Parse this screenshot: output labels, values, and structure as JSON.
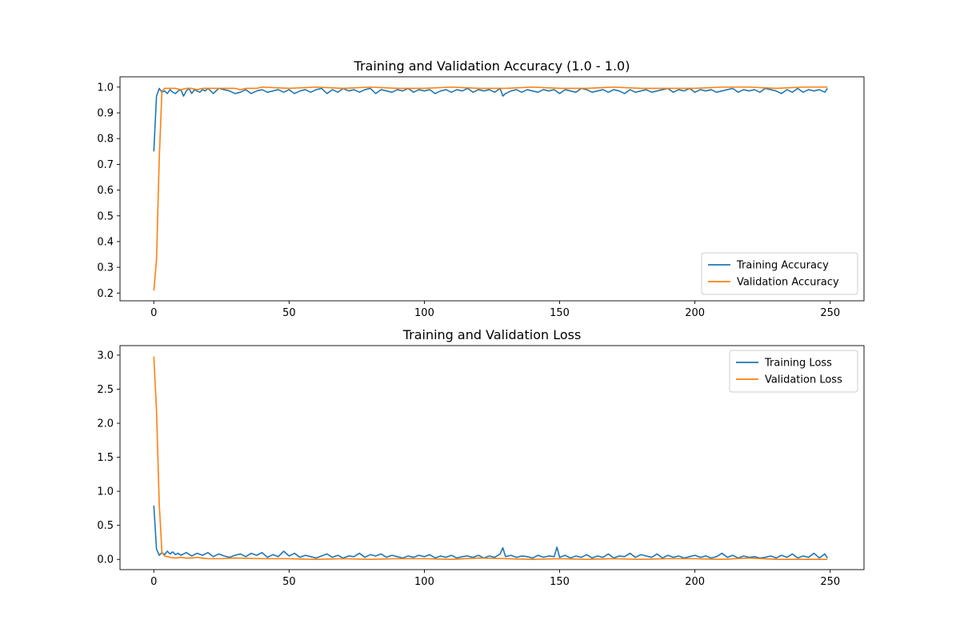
{
  "colors": {
    "training": "#1f77b4",
    "validation": "#ff7f0e"
  },
  "chart_data": [
    {
      "type": "line",
      "title": "Training and Validation Accuracy (1.0 - 1.0)",
      "xlabel": "",
      "ylabel": "",
      "xlim": [
        -12.5,
        262.5
      ],
      "ylim": [
        0.17,
        1.04
      ],
      "xticks": [
        0,
        50,
        100,
        150,
        200,
        250
      ],
      "xtick_labels": [
        "0",
        "50",
        "100",
        "150",
        "200",
        "250"
      ],
      "yticks": [
        0.2,
        0.3,
        0.4,
        0.5,
        0.6,
        0.7,
        0.8,
        0.9,
        1.0
      ],
      "ytick_labels": [
        "0.2",
        "0.3",
        "0.4",
        "0.5",
        "0.6",
        "0.7",
        "0.8",
        "0.9",
        "1.0"
      ],
      "grid": false,
      "legend_position": "lower-right",
      "series": [
        {
          "name": "Training Accuracy",
          "color": "#1f77b4",
          "x": [
            0,
            1,
            2,
            3,
            4,
            5,
            6,
            7,
            8,
            9,
            10,
            11,
            12,
            13,
            14,
            15,
            16,
            17,
            18,
            19,
            20,
            22,
            24,
            26,
            28,
            30,
            32,
            34,
            36,
            38,
            40,
            42,
            44,
            46,
            48,
            50,
            52,
            54,
            56,
            58,
            60,
            62,
            64,
            66,
            68,
            70,
            72,
            74,
            76,
            78,
            80,
            82,
            84,
            86,
            88,
            90,
            92,
            94,
            96,
            98,
            100,
            102,
            104,
            106,
            108,
            110,
            112,
            114,
            116,
            118,
            120,
            122,
            124,
            126,
            128,
            129,
            130,
            132,
            134,
            136,
            138,
            140,
            142,
            144,
            146,
            148,
            150,
            152,
            154,
            156,
            158,
            160,
            162,
            164,
            166,
            168,
            170,
            172,
            174,
            176,
            178,
            180,
            182,
            184,
            186,
            188,
            190,
            192,
            194,
            196,
            198,
            200,
            202,
            204,
            206,
            208,
            210,
            212,
            214,
            216,
            218,
            220,
            222,
            224,
            226,
            228,
            230,
            232,
            234,
            236,
            238,
            240,
            242,
            244,
            246,
            248,
            249
          ],
          "y": [
            0.75,
            0.965,
            0.995,
            0.98,
            0.985,
            0.975,
            0.99,
            0.98,
            0.975,
            0.985,
            0.99,
            0.965,
            0.985,
            0.995,
            0.975,
            0.99,
            0.985,
            0.98,
            0.99,
            0.985,
            0.995,
            0.975,
            0.995,
            0.99,
            0.985,
            0.975,
            0.98,
            0.99,
            0.975,
            0.985,
            0.99,
            0.98,
            0.985,
            0.99,
            0.98,
            0.99,
            0.975,
            0.985,
            0.99,
            0.98,
            0.99,
            0.995,
            0.975,
            0.99,
            0.98,
            0.995,
            0.985,
            0.99,
            0.98,
            0.99,
            0.995,
            0.975,
            0.99,
            0.985,
            0.98,
            0.99,
            0.985,
            0.995,
            0.98,
            0.99,
            0.985,
            0.99,
            0.975,
            0.985,
            0.99,
            0.98,
            0.99,
            0.985,
            0.995,
            0.98,
            0.99,
            0.985,
            0.99,
            0.98,
            0.995,
            0.965,
            0.975,
            0.985,
            0.99,
            0.98,
            0.99,
            0.985,
            0.98,
            0.99,
            0.985,
            0.99,
            0.975,
            0.99,
            0.985,
            0.98,
            0.995,
            0.99,
            0.98,
            0.985,
            0.99,
            0.98,
            0.99,
            0.985,
            0.975,
            0.99,
            0.98,
            0.985,
            0.99,
            0.98,
            0.985,
            0.99,
            0.995,
            0.98,
            0.99,
            0.985,
            0.995,
            0.98,
            0.99,
            0.985,
            0.99,
            0.98,
            0.985,
            0.99,
            0.995,
            0.98,
            0.99,
            0.985,
            0.99,
            0.98,
            0.995,
            0.99,
            0.985,
            0.975,
            0.99,
            0.98,
            0.995,
            0.98,
            0.99,
            0.985,
            0.99,
            0.98,
            0.995
          ]
        },
        {
          "name": "Validation Accuracy",
          "color": "#ff7f0e",
          "x": [
            0,
            1,
            2,
            3,
            4,
            5,
            6,
            8,
            10,
            12,
            14,
            16,
            18,
            20,
            22,
            24,
            26,
            28,
            30,
            32,
            34,
            36,
            38,
            40,
            50,
            60,
            70,
            80,
            90,
            100,
            110,
            120,
            130,
            140,
            150,
            160,
            170,
            180,
            190,
            200,
            210,
            220,
            230,
            240,
            249
          ],
          "y": [
            0.21,
            0.33,
            0.72,
            0.985,
            0.995,
            0.995,
            0.995,
            0.995,
            0.99,
            0.995,
            0.995,
            0.99,
            0.995,
            0.995,
            0.995,
            0.995,
            0.995,
            0.995,
            0.995,
            0.99,
            0.995,
            0.995,
            0.995,
            1.0,
            0.995,
            1.0,
            0.995,
            1.0,
            0.995,
            0.995,
            1.0,
            0.995,
            0.995,
            1.0,
            0.995,
            0.995,
            1.0,
            0.995,
            0.995,
            0.995,
            1.0,
            1.0,
            0.995,
            1.0,
            1.0
          ]
        }
      ]
    },
    {
      "type": "line",
      "title": "Training and Validation Loss",
      "xlabel": "",
      "ylabel": "",
      "xlim": [
        -12.5,
        262.5
      ],
      "ylim": [
        -0.15,
        3.14
      ],
      "xticks": [
        0,
        50,
        100,
        150,
        200,
        250
      ],
      "xtick_labels": [
        "0",
        "50",
        "100",
        "150",
        "200",
        "250"
      ],
      "yticks": [
        0.0,
        0.5,
        1.0,
        1.5,
        2.0,
        2.5,
        3.0
      ],
      "ytick_labels": [
        "0.0",
        "0.5",
        "1.0",
        "1.5",
        "2.0",
        "2.5",
        "3.0"
      ],
      "grid": false,
      "legend_position": "top-right",
      "series": [
        {
          "name": "Training Loss",
          "color": "#1f77b4",
          "x": [
            0,
            1,
            2,
            3,
            4,
            5,
            6,
            7,
            8,
            9,
            10,
            12,
            14,
            16,
            18,
            20,
            22,
            24,
            26,
            28,
            30,
            32,
            34,
            36,
            38,
            40,
            42,
            44,
            46,
            48,
            50,
            52,
            54,
            56,
            58,
            60,
            62,
            64,
            66,
            68,
            70,
            72,
            74,
            76,
            78,
            80,
            82,
            84,
            86,
            88,
            90,
            92,
            94,
            96,
            98,
            100,
            102,
            104,
            106,
            108,
            110,
            112,
            114,
            116,
            118,
            120,
            122,
            124,
            126,
            128,
            129,
            130,
            132,
            134,
            136,
            138,
            140,
            142,
            144,
            146,
            148,
            149,
            150,
            152,
            154,
            156,
            158,
            160,
            162,
            164,
            166,
            168,
            170,
            172,
            174,
            176,
            178,
            180,
            182,
            184,
            186,
            188,
            190,
            192,
            194,
            196,
            198,
            200,
            202,
            204,
            206,
            208,
            210,
            212,
            214,
            216,
            218,
            220,
            222,
            224,
            226,
            228,
            230,
            232,
            234,
            236,
            238,
            240,
            242,
            244,
            246,
            248,
            249
          ],
          "y": [
            0.79,
            0.15,
            0.06,
            0.1,
            0.07,
            0.12,
            0.08,
            0.11,
            0.07,
            0.09,
            0.06,
            0.1,
            0.05,
            0.09,
            0.06,
            0.1,
            0.04,
            0.08,
            0.05,
            0.03,
            0.06,
            0.08,
            0.04,
            0.09,
            0.06,
            0.1,
            0.03,
            0.07,
            0.04,
            0.12,
            0.05,
            0.09,
            0.03,
            0.06,
            0.04,
            0.02,
            0.05,
            0.08,
            0.03,
            0.06,
            0.02,
            0.05,
            0.04,
            0.09,
            0.03,
            0.07,
            0.05,
            0.08,
            0.03,
            0.06,
            0.04,
            0.02,
            0.05,
            0.03,
            0.06,
            0.04,
            0.07,
            0.02,
            0.05,
            0.03,
            0.06,
            0.02,
            0.04,
            0.05,
            0.03,
            0.06,
            0.02,
            0.05,
            0.03,
            0.08,
            0.17,
            0.04,
            0.06,
            0.03,
            0.05,
            0.04,
            0.02,
            0.06,
            0.03,
            0.05,
            0.04,
            0.18,
            0.03,
            0.06,
            0.02,
            0.05,
            0.03,
            0.07,
            0.02,
            0.05,
            0.03,
            0.08,
            0.02,
            0.05,
            0.04,
            0.09,
            0.03,
            0.07,
            0.05,
            0.03,
            0.08,
            0.02,
            0.06,
            0.03,
            0.05,
            0.02,
            0.04,
            0.06,
            0.03,
            0.05,
            0.02,
            0.04,
            0.09,
            0.03,
            0.06,
            0.02,
            0.05,
            0.03,
            0.04,
            0.02,
            0.03,
            0.05,
            0.02,
            0.06,
            0.03,
            0.08,
            0.02,
            0.05,
            0.03,
            0.09,
            0.02,
            0.08,
            0.02
          ]
        },
        {
          "name": "Validation Loss",
          "color": "#ff7f0e",
          "x": [
            0,
            1,
            2,
            3,
            4,
            5,
            6,
            8,
            10,
            12,
            14,
            16,
            18,
            20,
            25,
            30,
            40,
            50,
            60,
            70,
            80,
            90,
            100,
            110,
            120,
            130,
            140,
            150,
            160,
            170,
            180,
            190,
            200,
            210,
            220,
            230,
            240,
            249
          ],
          "y": [
            2.98,
            2.18,
            0.82,
            0.1,
            0.05,
            0.04,
            0.03,
            0.02,
            0.03,
            0.02,
            0.02,
            0.03,
            0.02,
            0.01,
            0.01,
            0.02,
            0.01,
            0.01,
            0.0,
            0.01,
            0.0,
            0.01,
            0.01,
            0.0,
            0.02,
            0.01,
            0.0,
            0.01,
            0.0,
            0.01,
            0.0,
            0.01,
            0.01,
            0.0,
            0.02,
            0.0,
            0.0,
            0.0
          ]
        }
      ]
    }
  ]
}
